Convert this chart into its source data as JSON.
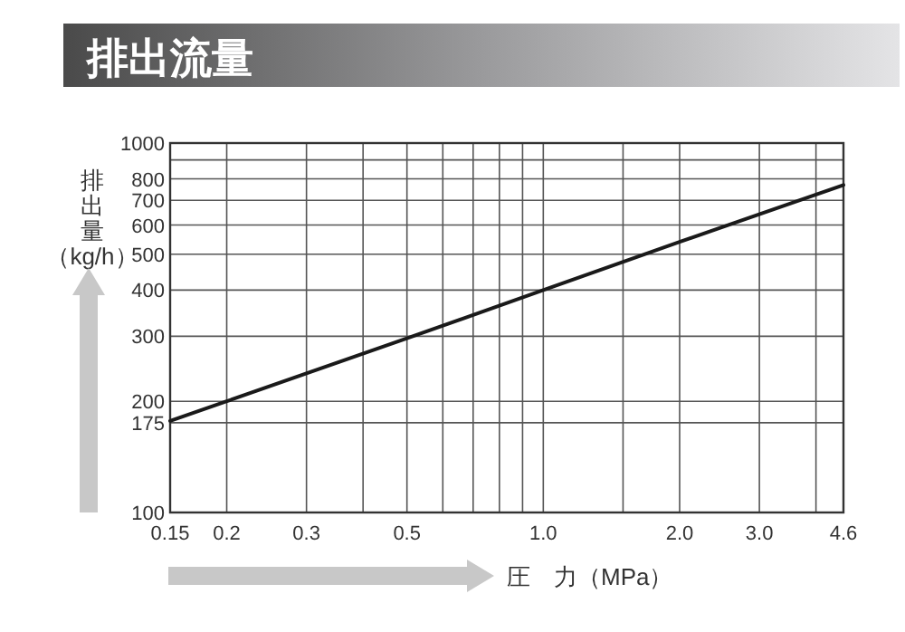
{
  "chart_data": {
    "type": "line",
    "title": "排出流量",
    "xlabel": "圧　力（MPa）",
    "ylabel": "排出量（kg/h）",
    "log": "xy",
    "grid": true,
    "xlim": [
      0.15,
      4.6
    ],
    "xticks": [
      0.15,
      0.2,
      0.3,
      {
        "value": 0.4,
        "label": null
      },
      0.5,
      {
        "value": 0.6,
        "label": null
      },
      {
        "value": 0.7,
        "label": null
      },
      {
        "value": 0.8,
        "label": null
      },
      {
        "value": 0.9,
        "label": null
      },
      {
        "value": 1,
        "label": "1.0"
      },
      {
        "value": 1.5,
        "label": null
      },
      {
        "value": 2,
        "label": "2.0"
      },
      {
        "value": 3,
        "label": "3.0"
      },
      {
        "value": 4,
        "label": null
      },
      4.6
    ],
    "ylim": [
      100,
      1000
    ],
    "yticks": [
      100,
      175,
      200,
      300,
      400,
      500,
      600,
      700,
      800,
      {
        "value": 900,
        "label": null
      },
      1000
    ],
    "x": [
      0.15,
      0.2,
      0.5,
      1,
      2,
      4.6
    ],
    "series": [
      {
        "color": "#1a1a1a",
        "values": [
          177,
          200,
          296,
          400,
          540,
          770
        ]
      }
    ],
    "marker": "none",
    "line_style": "solid"
  }
}
